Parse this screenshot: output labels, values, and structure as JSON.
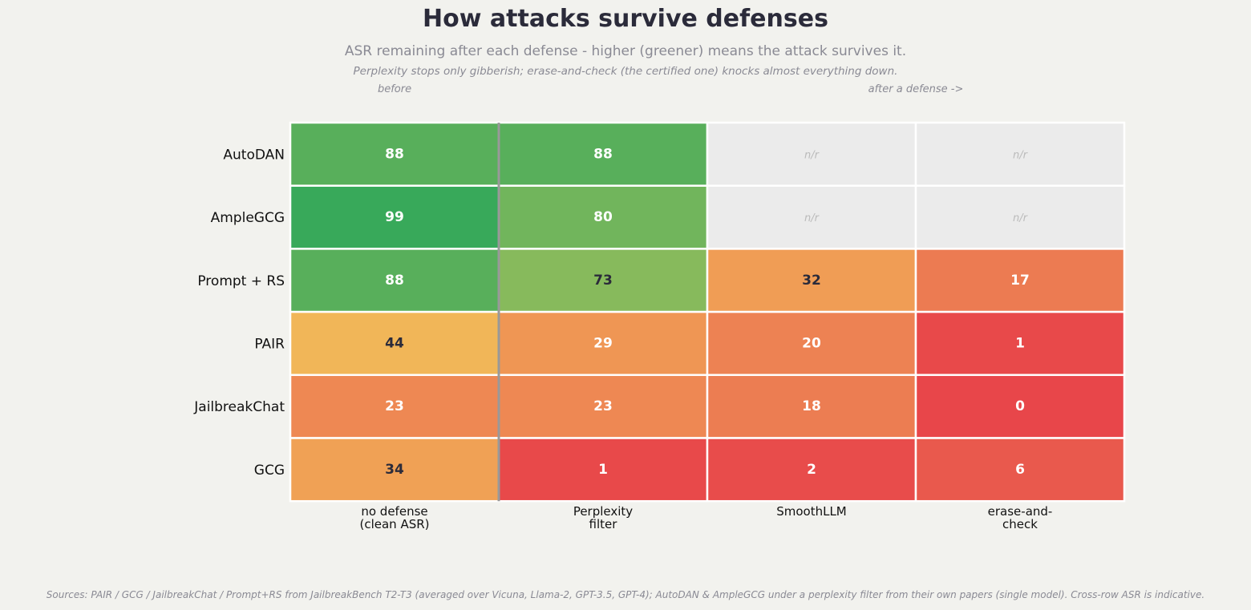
{
  "title": "How attacks survive defenses",
  "subtitle": "ASR remaining after each defense - higher (greener) means the attack survives it.",
  "subtitle2": "Perplexity stops only gibberish; erase-and-check (the certified one) knocks almost everything down.",
  "annotations": {
    "before": "before",
    "after": "after a defense ->"
  },
  "source_note": "Sources: PAIR / GCG / JailbreakChat / Prompt+RS from JailbreakBench T2-T3 (averaged over Vicuna, Llama-2, GPT-3.5, GPT-4); AutoDAN & AmpleGCG under a perplexity filter from their own papers (single model). Cross-row ASR is indicative.",
  "missing_label": "n/r",
  "colors": {
    "background": "#f2f2ee",
    "missing_cell": "#ebebeb",
    "missing_text": "#bbbbbb",
    "dark_text": "#2b2b3a",
    "light_text": "#ffffff",
    "divider": "#999999",
    "scale": [
      "#e8464a",
      "#ec7a52",
      "#f0a055",
      "#f2c35a",
      "#9cbf5c",
      "#66b25c",
      "#35a85a"
    ]
  },
  "chart_data": {
    "type": "heatmap",
    "title": "How attacks survive defenses",
    "rows": [
      "AutoDAN",
      "AmpleGCG",
      "Prompt + RS",
      "PAIR",
      "JailbreakChat",
      "GCG"
    ],
    "columns": [
      [
        "no defense",
        "(clean ASR)"
      ],
      [
        "Perplexity",
        "filter"
      ],
      [
        "SmoothLLM"
      ],
      [
        "erase-and-",
        "check"
      ]
    ],
    "values": [
      [
        88,
        88,
        null,
        null
      ],
      [
        99,
        80,
        null,
        null
      ],
      [
        88,
        73,
        32,
        17
      ],
      [
        44,
        29,
        20,
        1
      ],
      [
        23,
        23,
        18,
        0
      ],
      [
        34,
        1,
        2,
        6
      ]
    ],
    "dark_text_cells": [
      [
        2,
        1
      ],
      [
        2,
        2
      ],
      [
        3,
        0
      ],
      [
        5,
        0
      ]
    ],
    "value_range": [
      0,
      100
    ]
  }
}
